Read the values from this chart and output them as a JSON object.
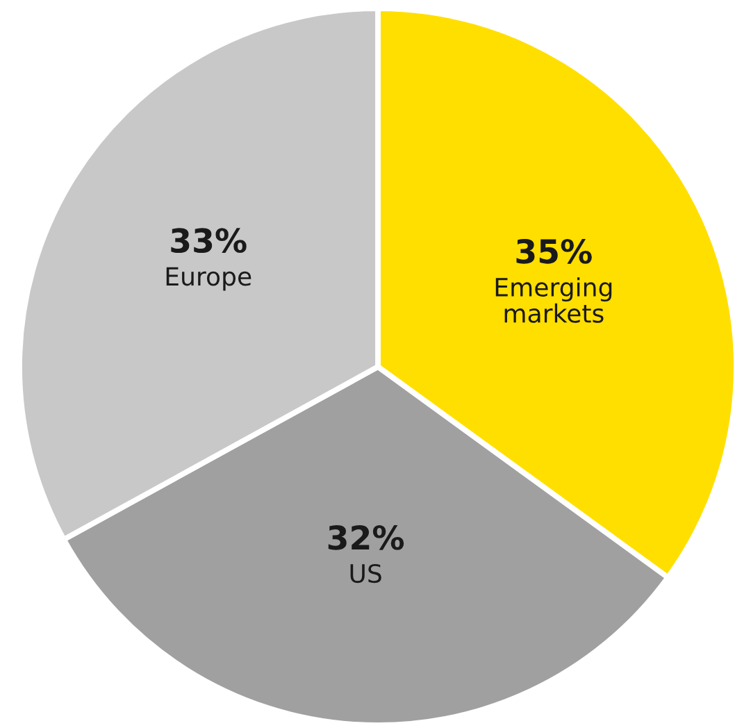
{
  "chart_data": {
    "type": "pie",
    "categories": [
      "Emerging\nmarkets",
      "US",
      "Europe"
    ],
    "values": [
      35,
      32,
      33
    ],
    "colors": [
      "#ffdf00",
      "#a0a0a0",
      "#c8c8c8"
    ],
    "value_labels": [
      "35%",
      "32%",
      "33%"
    ],
    "legend": false
  }
}
